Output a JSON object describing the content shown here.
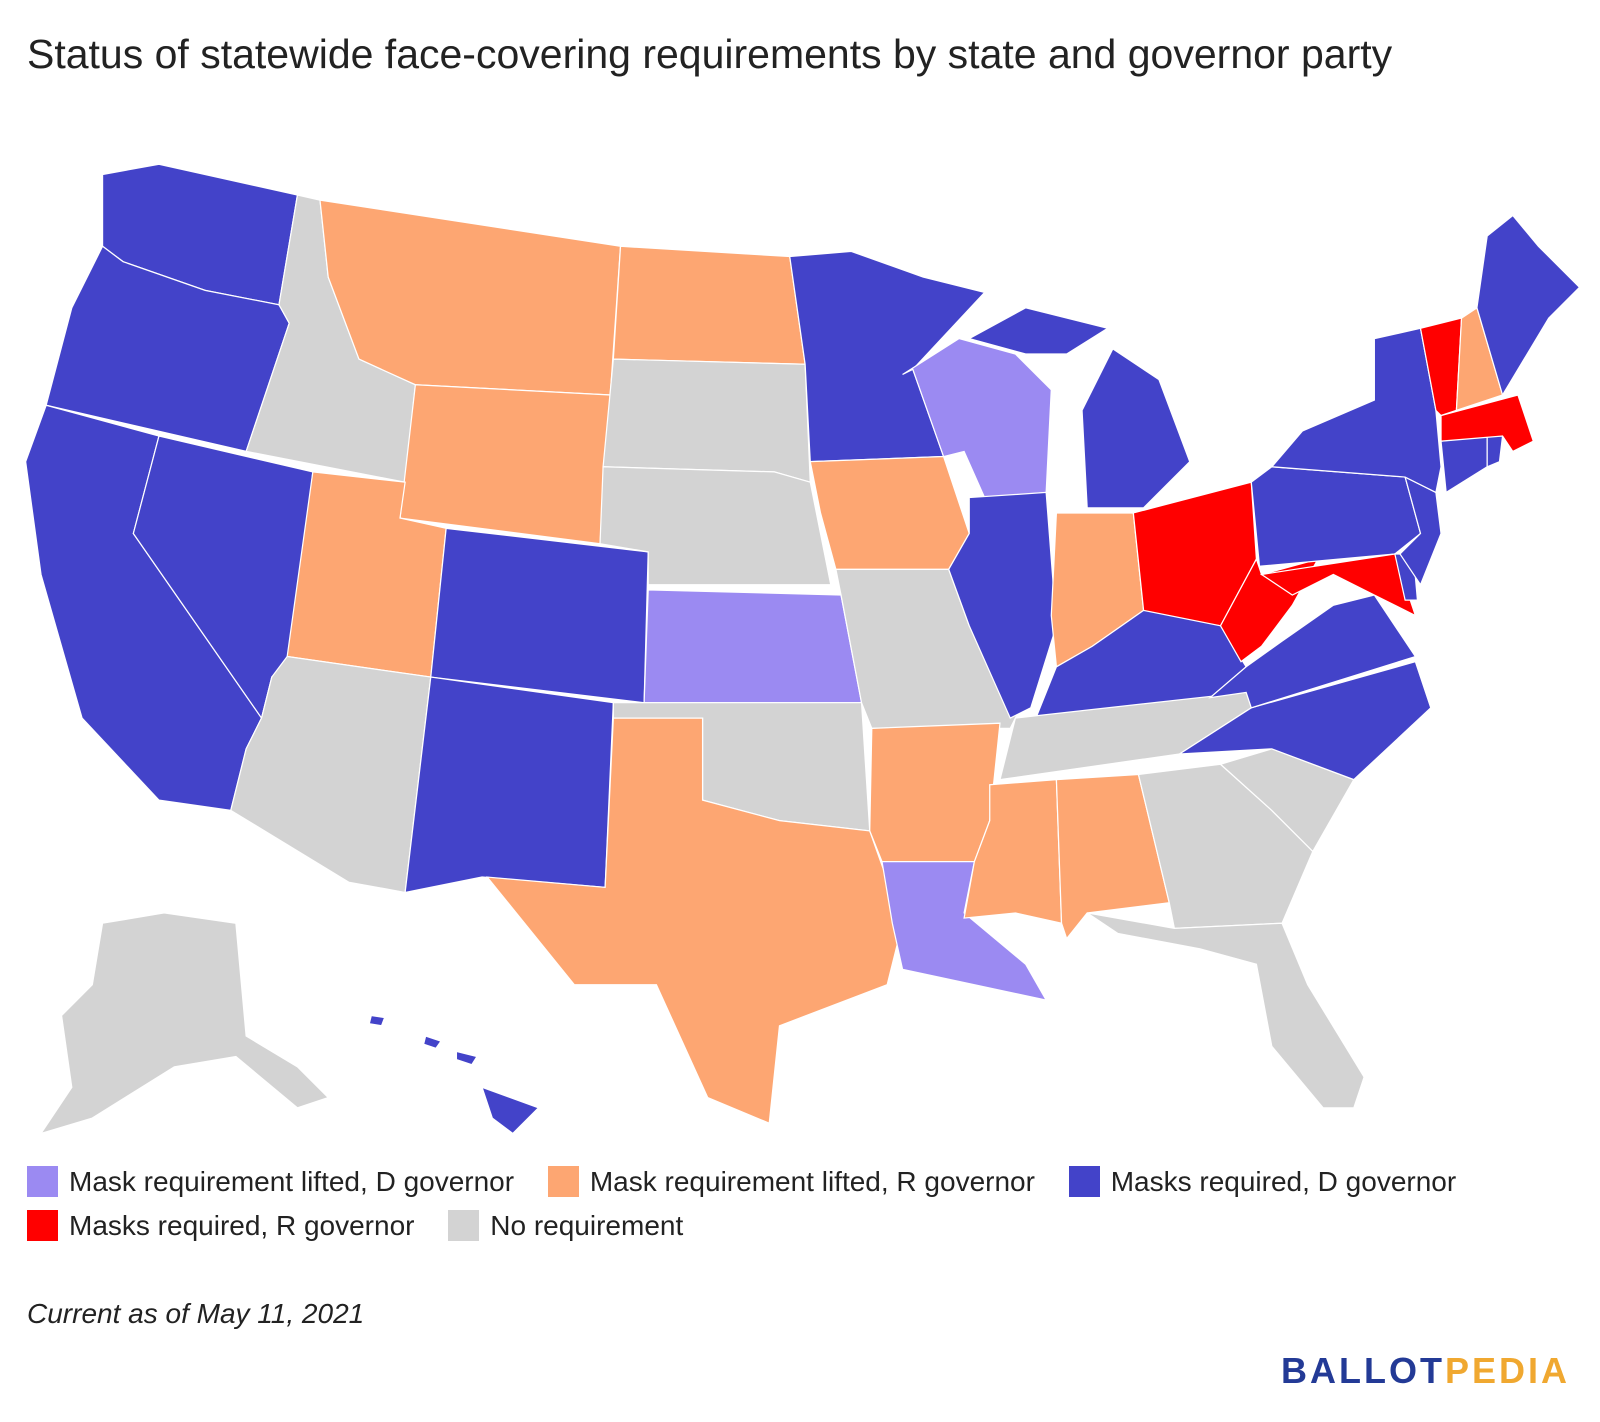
{
  "title": "Status of statewide face-covering requirements by state and governor party",
  "legend": [
    {
      "label": "Mask requirement lifted, D governor",
      "color": "#9b8af2"
    },
    {
      "label": "Mask requirement lifted, R governor",
      "color": "#fda672"
    },
    {
      "label": "Masks required, D governor",
      "color": "#4343c9"
    },
    {
      "label": "Masks required, R governor",
      "color": "#ff0000"
    },
    {
      "label": "No requirement",
      "color": "#d3d3d3"
    }
  ],
  "regions": [
    2,
    2,
    2,
    2,
    4,
    1,
    1,
    1,
    2,
    4,
    2,
    1,
    4,
    4,
    0,
    4,
    1,
    2,
    1,
    4,
    1,
    0,
    0,
    2,
    2,
    1,
    3,
    2,
    4,
    1,
    1,
    4,
    4,
    4,
    2,
    2,
    3,
    2,
    3,
    2,
    2,
    2,
    2,
    2,
    3,
    3,
    1,
    2,
    4,
    2
  ],
  "note": "Current as of May 11, 2021",
  "logo": {
    "first": "BALLOT",
    "second": "PEDIA"
  }
}
